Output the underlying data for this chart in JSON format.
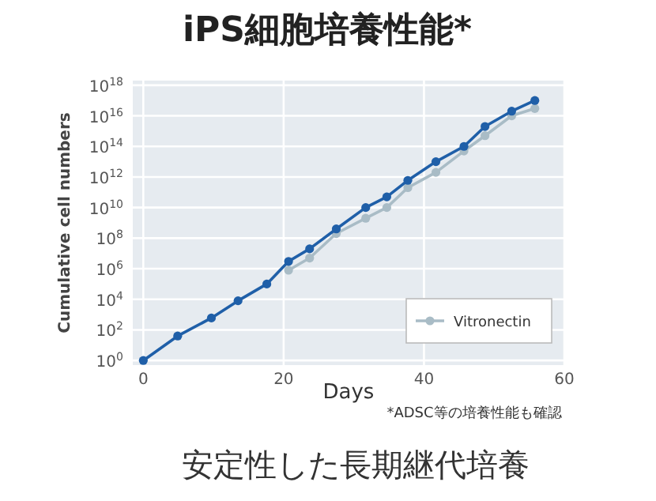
{
  "chart_data": {
    "type": "line",
    "title": "iPS細胞培養性能*",
    "xlabel": "Days",
    "ylabel": "Cumulative cell numbers",
    "annotations": [
      "*ADSC等の培養性能も確認",
      "安定性した長期継代培養"
    ],
    "log": "y",
    "grid": true,
    "legend": "bottom right",
    "marker": "circle",
    "line_style": "solid",
    "xlim": [
      -1.5,
      60
    ],
    "xticks": [
      0,
      20,
      40,
      60
    ],
    "ylim": [
      0.5,
      2e+18
    ],
    "yticks": [
      {
        "value": 1,
        "label": "10$^{0}$"
      },
      {
        "value": 100.0,
        "label": "10$^{2}$"
      },
      {
        "value": 10000.0,
        "label": "10$^{4}$"
      },
      {
        "value": 1000000.0,
        "label": "10$^{6}$"
      },
      {
        "value": 100000000.0,
        "label": "10$^{8}$"
      },
      {
        "value": 10000000000.0,
        "label": "10$^{10}$"
      },
      {
        "value": 1000000000000.0,
        "label": "10$^{12}$"
      },
      {
        "value": 100000000000000.0,
        "label": "10$^{14}$"
      },
      {
        "value": 1e+16,
        "label": "10$^{16}$"
      },
      {
        "value": 1e+18,
        "label": "10$^{18}$"
      }
    ],
    "series": [
      {
        "color": "#a9bcc6",
        "x": [
          20.7,
          23.7,
          27.5,
          31.7,
          34.7,
          37.7,
          41.7,
          45.7,
          48.7,
          52.5,
          55.8
        ],
        "values": [
          800000.0,
          5000000.0,
          200000000.0,
          2000000000.0,
          10000000000.0,
          200000000000.0,
          2000000000000.0,
          50000000000000.0,
          500000000000000.0,
          1e+16,
          3e+16
        ],
        "name": "Vitronectin"
      },
      {
        "color": "#1f5fa8",
        "x": [
          0,
          4.9,
          9.7,
          13.5,
          17.6,
          20.7,
          23.7,
          27.5,
          31.7,
          34.7,
          37.7,
          41.7,
          45.7,
          48.7,
          52.5,
          55.8
        ],
        "values": [
          1,
          40.0,
          600.0,
          8000.0,
          100000.0,
          3000000.0,
          20000000.0,
          400000000.0,
          10000000000.0,
          50000000000.0,
          600000000000.0,
          10000000000000.0,
          100000000000000.0,
          2000000000000000.0,
          2e+16,
          1e+17
        ]
      }
    ]
  }
}
